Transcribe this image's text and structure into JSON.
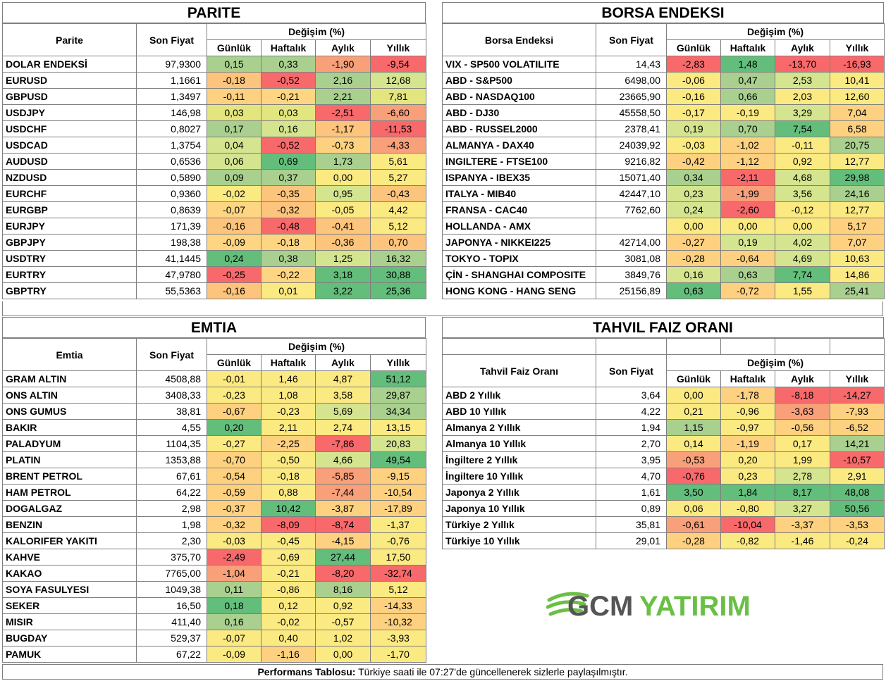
{
  "common": {
    "son_fiyat": "Son Fiyat",
    "degisim": "Değişim (%)",
    "gunluk": "Günlük",
    "haftalik": "Haftalık",
    "aylik": "Aylık",
    "yillik": "Yıllık"
  },
  "parite": {
    "title": "PARITE",
    "name_header": "Parite",
    "rows": [
      {
        "name": "DOLAR ENDEKSİ",
        "price": "97,9300",
        "d": "0,15",
        "w": "0,33",
        "m": "-1,90",
        "y": "-9,54",
        "c": [
          "#a9d08e",
          "#a9d08e",
          "#f8a07a",
          "#f8696b"
        ]
      },
      {
        "name": "EURUSD",
        "price": "1,1661",
        "d": "-0,18",
        "w": "-0,52",
        "m": "2,16",
        "y": "12,68",
        "c": [
          "#fcc47c",
          "#f8696b",
          "#a9d08e",
          "#d4e48f"
        ]
      },
      {
        "name": "GBPUSD",
        "price": "1,3497",
        "d": "-0,11",
        "w": "-0,21",
        "m": "2,21",
        "y": "7,81",
        "c": [
          "#fdd17f",
          "#fed683",
          "#a9d08e",
          "#e3e67f"
        ]
      },
      {
        "name": "USDJPY",
        "price": "146,98",
        "d": "0,03",
        "w": "0,03",
        "m": "-2,51",
        "y": "-6,60",
        "c": [
          "#e3e67f",
          "#e3e67f",
          "#f8696b",
          "#f8a07a"
        ]
      },
      {
        "name": "USDCHF",
        "price": "0,8027",
        "d": "0,17",
        "w": "0,16",
        "m": "-1,17",
        "y": "-11,53",
        "c": [
          "#a9d08e",
          "#d4e48f",
          "#fcc47c",
          "#f8696b"
        ]
      },
      {
        "name": "USDCAD",
        "price": "1,3754",
        "d": "0,04",
        "w": "-0,52",
        "m": "-0,73",
        "y": "-4,33",
        "c": [
          "#d4e48f",
          "#f8696b",
          "#fdd17f",
          "#f8a07a"
        ]
      },
      {
        "name": "AUDUSD",
        "price": "0,6536",
        "d": "0,06",
        "w": "0,69",
        "m": "1,73",
        "y": "5,61",
        "c": [
          "#d4e48f",
          "#63be7b",
          "#a9d08e",
          "#fbe982"
        ]
      },
      {
        "name": "NZDUSD",
        "price": "0,5890",
        "d": "0,09",
        "w": "0,37",
        "m": "0,00",
        "y": "5,27",
        "c": [
          "#a9d08e",
          "#a9d08e",
          "#fbe982",
          "#fbe982"
        ]
      },
      {
        "name": "EURCHF",
        "price": "0,9360",
        "d": "-0,02",
        "w": "-0,35",
        "m": "0,95",
        "y": "-0,43",
        "c": [
          "#fbe982",
          "#fcc47c",
          "#d4e48f",
          "#fcc47c"
        ]
      },
      {
        "name": "EURGBP",
        "price": "0,8639",
        "d": "-0,07",
        "w": "-0,32",
        "m": "-0,05",
        "y": "4,42",
        "c": [
          "#fed683",
          "#fcc47c",
          "#fbe982",
          "#fbe982"
        ]
      },
      {
        "name": "EURJPY",
        "price": "171,39",
        "d": "-0,16",
        "w": "-0,48",
        "m": "-0,41",
        "y": "5,12",
        "c": [
          "#fcc47c",
          "#f8696b",
          "#fcc47c",
          "#fbe982"
        ]
      },
      {
        "name": "GBPJPY",
        "price": "198,38",
        "d": "-0,09",
        "w": "-0,18",
        "m": "-0,36",
        "y": "0,70",
        "c": [
          "#fed683",
          "#fed683",
          "#fcc47c",
          "#fcc47c"
        ]
      },
      {
        "name": "USDTRY",
        "price": "41,1445",
        "d": "0,24",
        "w": "0,38",
        "m": "1,25",
        "y": "16,32",
        "c": [
          "#63be7b",
          "#a9d08e",
          "#d4e48f",
          "#a9d08e"
        ]
      },
      {
        "name": "EURTRY",
        "price": "47,9780",
        "d": "-0,25",
        "w": "-0,22",
        "m": "3,18",
        "y": "30,88",
        "c": [
          "#f8696b",
          "#fed683",
          "#63be7b",
          "#63be7b"
        ]
      },
      {
        "name": "GBPTRY",
        "price": "55,5363",
        "d": "-0,16",
        "w": "0,01",
        "m": "3,22",
        "y": "25,36",
        "c": [
          "#fcc47c",
          "#fbe982",
          "#63be7b",
          "#63be7b"
        ]
      }
    ]
  },
  "borsa": {
    "title": "BORSA ENDEKSI",
    "name_header": "Borsa Endeksi",
    "rows": [
      {
        "name": "VIX  - SP500 VOLATILITE",
        "price": "14,43",
        "d": "-2,83",
        "w": "1,48",
        "m": "-13,70",
        "y": "-16,93",
        "c": [
          "#f8696b",
          "#63be7b",
          "#f8696b",
          "#f8696b"
        ]
      },
      {
        "name": "ABD - S&P500",
        "price": "6498,00",
        "d": "-0,06",
        "w": "0,47",
        "m": "2,53",
        "y": "10,41",
        "c": [
          "#fbe982",
          "#a9d08e",
          "#d4e48f",
          "#fbe982"
        ]
      },
      {
        "name": "ABD - NASDAQ100",
        "price": "23665,90",
        "d": "-0,16",
        "w": "0,66",
        "m": "2,03",
        "y": "12,60",
        "c": [
          "#fbe982",
          "#a9d08e",
          "#fbe982",
          "#fbe982"
        ]
      },
      {
        "name": "ABD - DJ30",
        "price": "45558,50",
        "d": "-0,17",
        "w": "-0,19",
        "m": "3,29",
        "y": "7,04",
        "c": [
          "#fbe982",
          "#fbe982",
          "#d4e48f",
          "#fdd17f"
        ]
      },
      {
        "name": "ABD - RUSSEL2000",
        "price": "2378,41",
        "d": "0,19",
        "w": "0,70",
        "m": "7,54",
        "y": "6,58",
        "c": [
          "#d4e48f",
          "#a9d08e",
          "#63be7b",
          "#fdd17f"
        ]
      },
      {
        "name": "ALMANYA - DAX40",
        "price": "24039,92",
        "d": "-0,03",
        "w": "-1,02",
        "m": "-0,11",
        "y": "20,75",
        "c": [
          "#fbe982",
          "#fdd17f",
          "#fbe982",
          "#a9d08e"
        ]
      },
      {
        "name": "INGILTERE - FTSE100",
        "price": "9216,82",
        "d": "-0,42",
        "w": "-1,12",
        "m": "0,92",
        "y": "12,77",
        "c": [
          "#fdd17f",
          "#fdd17f",
          "#fbe982",
          "#fbe982"
        ]
      },
      {
        "name": "ISPANYA - IBEX35",
        "price": "15071,40",
        "d": "0,34",
        "w": "-2,11",
        "m": "4,68",
        "y": "29,98",
        "c": [
          "#a9d08e",
          "#f8696b",
          "#d4e48f",
          "#63be7b"
        ]
      },
      {
        "name": "ITALYA - MIB40",
        "price": "42447,10",
        "d": "0,23",
        "w": "-1,99",
        "m": "3,56",
        "y": "24,16",
        "c": [
          "#d4e48f",
          "#f8a07a",
          "#d4e48f",
          "#a9d08e"
        ]
      },
      {
        "name": "FRANSA - CAC40",
        "price": "7762,60",
        "d": "0,24",
        "w": "-2,60",
        "m": "-0,12",
        "y": "12,77",
        "c": [
          "#d4e48f",
          "#f8696b",
          "#fbe982",
          "#fbe982"
        ]
      },
      {
        "name": "HOLLANDA - AMX",
        "price": "",
        "d": "0,00",
        "w": "0,00",
        "m": "0,00",
        "y": "5,17",
        "c": [
          "#fbe982",
          "#fbe982",
          "#fbe982",
          "#fdd17f"
        ]
      },
      {
        "name": "JAPONYA - NIKKEI225",
        "price": "42714,00",
        "d": "-0,27",
        "w": "0,19",
        "m": "4,02",
        "y": "7,07",
        "c": [
          "#fdd17f",
          "#d4e48f",
          "#d4e48f",
          "#fdd17f"
        ]
      },
      {
        "name": "TOKYO - TOPIX",
        "price": "3081,08",
        "d": "-0,28",
        "w": "-0,64",
        "m": "4,69",
        "y": "10,63",
        "c": [
          "#fdd17f",
          "#fdd17f",
          "#d4e48f",
          "#fbe982"
        ]
      },
      {
        "name": "ÇİN - SHANGHAI COMPOSITE",
        "price": "3849,76",
        "d": "0,16",
        "w": "0,63",
        "m": "7,74",
        "y": "14,86",
        "c": [
          "#d4e48f",
          "#a9d08e",
          "#63be7b",
          "#fbe982"
        ]
      },
      {
        "name": "HONG KONG - HANG SENG",
        "price": "25156,89",
        "d": "0,63",
        "w": "-0,72",
        "m": "1,55",
        "y": "25,41",
        "c": [
          "#63be7b",
          "#fdd17f",
          "#fbe982",
          "#a9d08e"
        ]
      }
    ]
  },
  "emtia": {
    "title": "EMTIA",
    "name_header": "Emtia",
    "rows": [
      {
        "name": "GRAM ALTIN",
        "price": "4508,88",
        "d": "-0,01",
        "w": "1,46",
        "m": "4,87",
        "y": "51,12",
        "c": [
          "#fbe982",
          "#fbe982",
          "#fbe982",
          "#63be7b"
        ]
      },
      {
        "name": "ONS ALTIN",
        "price": "3408,33",
        "d": "-0,23",
        "w": "1,08",
        "m": "3,58",
        "y": "29,87",
        "c": [
          "#fbe982",
          "#fbe982",
          "#fbe982",
          "#a9d08e"
        ]
      },
      {
        "name": "ONS GUMUS",
        "price": "38,81",
        "d": "-0,67",
        "w": "-0,23",
        "m": "5,69",
        "y": "34,34",
        "c": [
          "#fdd17f",
          "#fbe982",
          "#d4e48f",
          "#a9d08e"
        ]
      },
      {
        "name": "BAKIR",
        "price": "4,55",
        "d": "0,20",
        "w": "2,11",
        "m": "2,74",
        "y": "13,15",
        "c": [
          "#63be7b",
          "#fbe982",
          "#fbe982",
          "#fbe982"
        ]
      },
      {
        "name": "PALADYUM",
        "price": "1104,35",
        "d": "-0,27",
        "w": "-2,25",
        "m": "-7,86",
        "y": "20,83",
        "c": [
          "#fbe982",
          "#fdd17f",
          "#f8696b",
          "#d4e48f"
        ]
      },
      {
        "name": "PLATIN",
        "price": "1353,88",
        "d": "-0,70",
        "w": "-0,50",
        "m": "4,66",
        "y": "49,54",
        "c": [
          "#fdd17f",
          "#fbe982",
          "#d4e48f",
          "#63be7b"
        ]
      },
      {
        "name": "BRENT PETROL",
        "price": "67,61",
        "d": "-0,54",
        "w": "-0,18",
        "m": "-5,85",
        "y": "-9,15",
        "c": [
          "#fdd17f",
          "#fbe982",
          "#f8a07a",
          "#fdd17f"
        ]
      },
      {
        "name": "HAM PETROL",
        "price": "64,22",
        "d": "-0,59",
        "w": "0,88",
        "m": "-7,44",
        "y": "-10,54",
        "c": [
          "#fdd17f",
          "#fbe982",
          "#f8a07a",
          "#fdd17f"
        ]
      },
      {
        "name": "DOGALGAZ",
        "price": "2,98",
        "d": "-0,37",
        "w": "10,42",
        "m": "-3,87",
        "y": "-17,89",
        "c": [
          "#fdd17f",
          "#63be7b",
          "#fdd17f",
          "#fdd17f"
        ]
      },
      {
        "name": "BENZIN",
        "price": "1,98",
        "d": "-0,32",
        "w": "-8,09",
        "m": "-8,74",
        "y": "-1,37",
        "c": [
          "#fdd17f",
          "#f8696b",
          "#f8696b",
          "#fbe982"
        ]
      },
      {
        "name": "KALORIFER YAKITI",
        "price": "2,30",
        "d": "-0,03",
        "w": "-0,45",
        "m": "-4,15",
        "y": "-0,76",
        "c": [
          "#fbe982",
          "#fbe982",
          "#fdd17f",
          "#fbe982"
        ]
      },
      {
        "name": "KAHVE",
        "price": "375,70",
        "d": "-2,49",
        "w": "-0,69",
        "m": "27,44",
        "y": "17,50",
        "c": [
          "#f8696b",
          "#fbe982",
          "#63be7b",
          "#fbe982"
        ]
      },
      {
        "name": "KAKAO",
        "price": "7765,00",
        "d": "-1,04",
        "w": "-0,21",
        "m": "-8,20",
        "y": "-32,74",
        "c": [
          "#f8a07a",
          "#fbe982",
          "#f8696b",
          "#f8696b"
        ]
      },
      {
        "name": "SOYA FASULYESI",
        "price": "1049,38",
        "d": "0,11",
        "w": "-0,86",
        "m": "8,16",
        "y": "5,12",
        "c": [
          "#a9d08e",
          "#fbe982",
          "#a9d08e",
          "#fbe982"
        ]
      },
      {
        "name": "SEKER",
        "price": "16,50",
        "d": "0,18",
        "w": "0,12",
        "m": "0,92",
        "y": "-14,33",
        "c": [
          "#63be7b",
          "#fbe982",
          "#fbe982",
          "#fdd17f"
        ]
      },
      {
        "name": "MISIR",
        "price": "411,40",
        "d": "0,16",
        "w": "-0,02",
        "m": "-0,57",
        "y": "-10,32",
        "c": [
          "#a9d08e",
          "#fbe982",
          "#fbe982",
          "#fdd17f"
        ]
      },
      {
        "name": "BUGDAY",
        "price": "529,37",
        "d": "-0,07",
        "w": "0,40",
        "m": "1,02",
        "y": "-3,93",
        "c": [
          "#fbe982",
          "#fbe982",
          "#fbe982",
          "#fbe982"
        ]
      },
      {
        "name": "PAMUK",
        "price": "67,22",
        "d": "-0,09",
        "w": "-1,16",
        "m": "0,00",
        "y": "-1,70",
        "c": [
          "#fbe982",
          "#fdd17f",
          "#fbe982",
          "#fbe982"
        ]
      }
    ]
  },
  "tahvil": {
    "title": "TAHVIL FAIZ ORANI",
    "name_header": "Tahvil Faiz Oranı",
    "rows": [
      {
        "name": "ABD 2 Yıllık",
        "price": "3,64",
        "d": "0,00",
        "w": "-1,78",
        "m": "-8,18",
        "y": "-14,27",
        "c": [
          "#fbe982",
          "#fdd17f",
          "#f8696b",
          "#f8696b"
        ]
      },
      {
        "name": "ABD 10 Yıllık",
        "price": "4,22",
        "d": "0,21",
        "w": "-0,96",
        "m": "-3,63",
        "y": "-7,93",
        "c": [
          "#fbe982",
          "#fbe982",
          "#f8a07a",
          "#fdd17f"
        ]
      },
      {
        "name": "Almanya 2 Yıllık",
        "price": "1,94",
        "d": "1,15",
        "w": "-0,97",
        "m": "-0,56",
        "y": "-6,52",
        "c": [
          "#a9d08e",
          "#fbe982",
          "#fdd17f",
          "#fdd17f"
        ]
      },
      {
        "name": "Almanya 10 Yıllık",
        "price": "2,70",
        "d": "0,14",
        "w": "-1,19",
        "m": "0,17",
        "y": "14,21",
        "c": [
          "#fbe982",
          "#fdd17f",
          "#fbe982",
          "#a9d08e"
        ]
      },
      {
        "name": "İngiltere 2 Yıllık",
        "price": "3,95",
        "d": "-0,53",
        "w": "0,20",
        "m": "1,99",
        "y": "-10,57",
        "c": [
          "#f8a07a",
          "#fbe982",
          "#fbe982",
          "#f8696b"
        ]
      },
      {
        "name": "İngiltere 10 Yıllık",
        "price": "4,70",
        "d": "-0,76",
        "w": "0,23",
        "m": "2,78",
        "y": "2,91",
        "c": [
          "#f8696b",
          "#fbe982",
          "#d4e48f",
          "#fbe982"
        ]
      },
      {
        "name": "Japonya 2 Yıllık",
        "price": "1,61",
        "d": "3,50",
        "w": "1,84",
        "m": "8,17",
        "y": "48,08",
        "c": [
          "#63be7b",
          "#63be7b",
          "#63be7b",
          "#63be7b"
        ]
      },
      {
        "name": "Japonya 10 Yıllık",
        "price": "0,89",
        "d": "0,06",
        "w": "-0,80",
        "m": "3,27",
        "y": "50,56",
        "c": [
          "#fbe982",
          "#fbe982",
          "#d4e48f",
          "#63be7b"
        ]
      },
      {
        "name": "Türkiye 2 Yıllık",
        "price": "35,81",
        "d": "-0,61",
        "w": "-10,04",
        "m": "-3,37",
        "y": "-3,53",
        "c": [
          "#f8a07a",
          "#f8696b",
          "#fdd17f",
          "#fdd17f"
        ]
      },
      {
        "name": "Türkiye 10 Yıllık",
        "price": "29,01",
        "d": "-0,28",
        "w": "-0,82",
        "m": "-1,46",
        "y": "-0,24",
        "c": [
          "#fdd17f",
          "#fbe982",
          "#fbe982",
          "#fbe982"
        ]
      }
    ]
  },
  "logo": {
    "part1": "GCM",
    "part2": "YATIRIM",
    "color_green": "#6abf45",
    "color_gray": "#555555"
  },
  "footer": {
    "label": "Performans Tablosu:",
    "text": " Türkiye saati ile 07:27'de güncellenerek sizlerle paylaşılmıştır."
  }
}
